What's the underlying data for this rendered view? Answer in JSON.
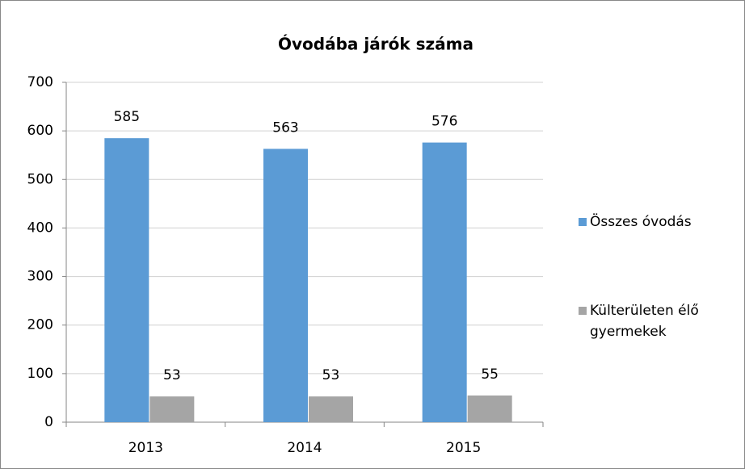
{
  "chart_data": {
    "type": "bar",
    "title": "Óvodába járók száma",
    "categories": [
      "2013",
      "2014",
      "2015"
    ],
    "series": [
      {
        "name": "Összes óvodás",
        "color": "#5b9bd5",
        "values": [
          585,
          563,
          576
        ]
      },
      {
        "name": "Külterületen élő gyermekek",
        "color": "#a5a5a5",
        "values": [
          53,
          53,
          55
        ]
      }
    ],
    "ylim": [
      0,
      700
    ],
    "yticks": [
      0,
      100,
      200,
      300,
      400,
      500,
      600,
      700
    ],
    "grid": true,
    "legend": "right"
  }
}
